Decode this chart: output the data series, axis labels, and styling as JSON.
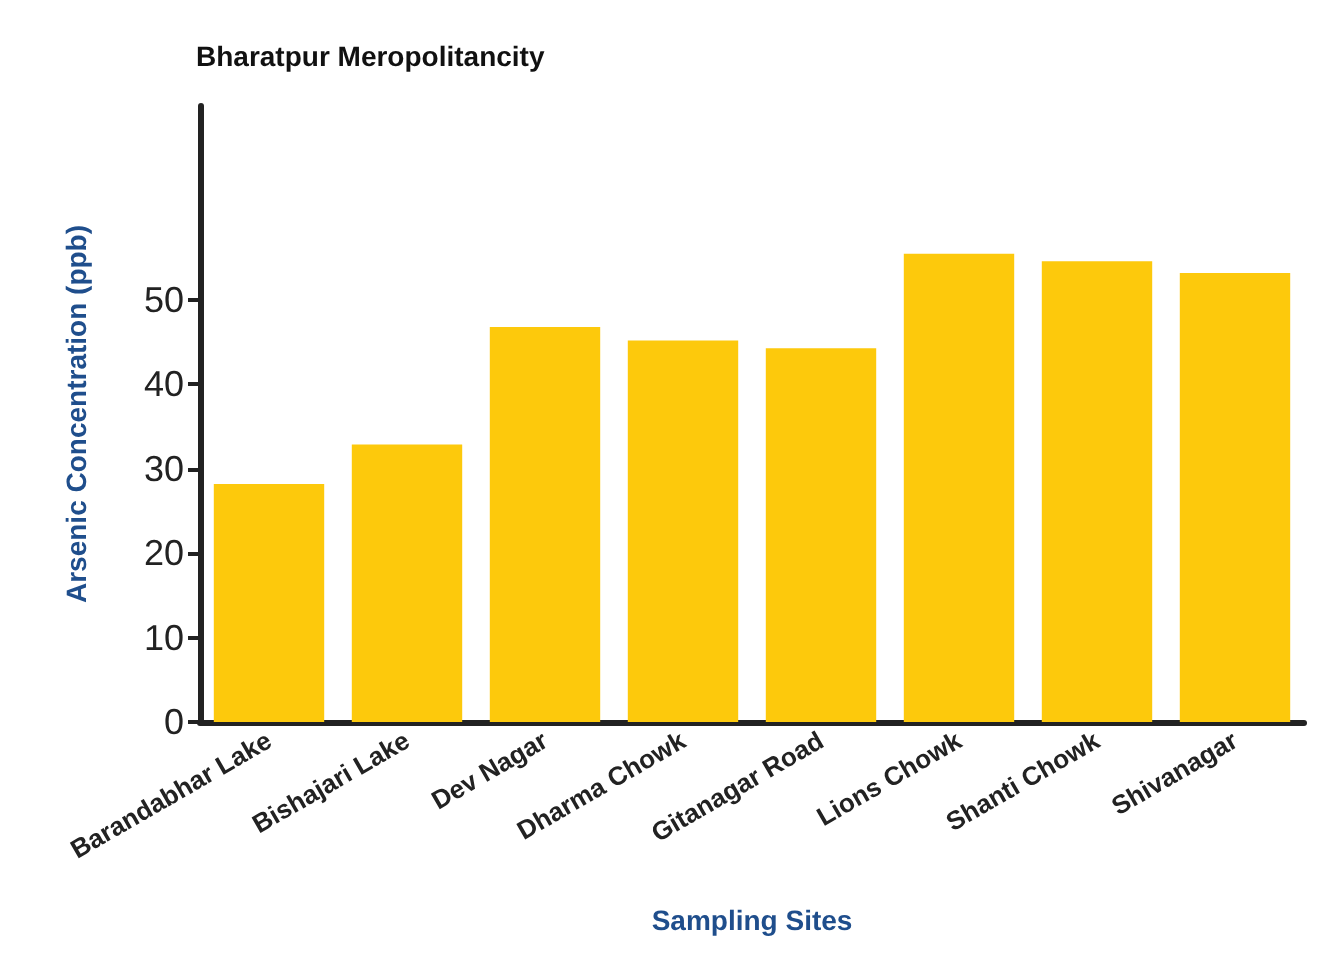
{
  "chart_data": {
    "type": "bar",
    "title": "Bharatpur Meropolitancity",
    "xlabel": "Sampling Sites",
    "ylabel": "Arsenic Concentration (ppb)",
    "categories": [
      "Barandabhar Lake",
      "Bishajari Lake",
      "Dev Nagar",
      "Dharma Chowk",
      "Gitanagar Road",
      "Lions Chowk",
      "Shanti Chowk",
      "Shivanagar"
    ],
    "values": [
      28.2,
      32.9,
      46.8,
      45.2,
      44.3,
      55.5,
      54.6,
      53.2
    ],
    "color": "#fdc90c",
    "ylim": [
      0,
      73
    ],
    "yticks": [
      0,
      10,
      20,
      30,
      40,
      50
    ],
    "grid": false
  }
}
